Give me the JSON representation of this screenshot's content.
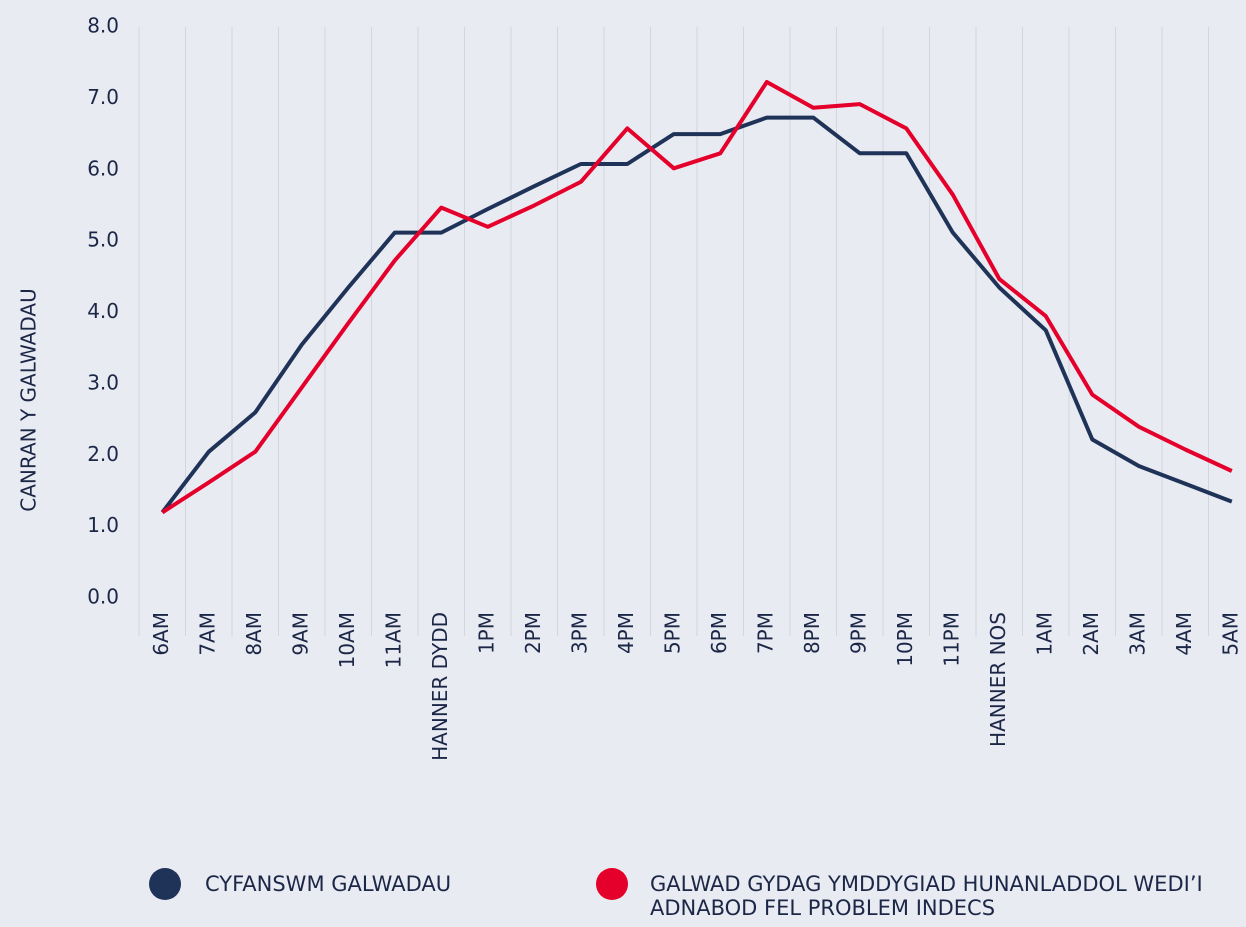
{
  "chart_data": {
    "type": "line",
    "y_label": "CANRAN Y GALWADAU",
    "categories": [
      "6AM",
      "7AM",
      "8AM",
      "9AM",
      "10AM",
      "11AM",
      "HANNER DYDD",
      "1PM",
      "2PM",
      "3PM",
      "4PM",
      "5PM",
      "6PM",
      "7PM",
      "8PM",
      "9PM",
      "10PM",
      "11PM",
      "HANNER NOS",
      "1AM",
      "2AM",
      "3AM",
      "4AM",
      "5AM"
    ],
    "series": [
      {
        "name": "CYFANSWM GALWADAU",
        "color": "#1f3358",
        "values": [
          1.2,
          2.05,
          2.6,
          3.55,
          4.35,
          5.12,
          5.12,
          5.45,
          5.77,
          6.08,
          6.08,
          6.5,
          6.5,
          6.73,
          6.73,
          6.23,
          6.23,
          5.12,
          4.35,
          3.75,
          2.22,
          1.85,
          1.6,
          1.35
        ]
      },
      {
        "name": "GALWAD GYDAG YMDDYGIAD HUNANLADDOL WEDI’I ADNABOD FEL PROBLEM INDECS",
        "color": "#e4002b",
        "values": [
          1.2,
          1.62,
          2.05,
          2.95,
          3.85,
          4.73,
          5.47,
          5.2,
          5.5,
          5.83,
          6.58,
          6.02,
          6.23,
          7.23,
          6.87,
          6.92,
          6.58,
          5.65,
          4.47,
          3.95,
          2.85,
          2.4,
          2.08,
          1.78
        ]
      }
    ],
    "ylim": [
      0,
      8
    ],
    "yticks": [
      {
        "value": 0,
        "label": "0.0"
      },
      {
        "value": 1,
        "label": "1.0"
      },
      {
        "value": 2,
        "label": "2.0"
      },
      {
        "value": 3,
        "label": "3.0"
      },
      {
        "value": 4,
        "label": "4.0"
      },
      {
        "value": 5,
        "label": "5.0"
      },
      {
        "value": 6,
        "label": "6.0"
      },
      {
        "value": 7,
        "label": "7.0"
      },
      {
        "value": 8,
        "label": "8.0"
      }
    ],
    "grid": "x",
    "legend": "bottom"
  }
}
